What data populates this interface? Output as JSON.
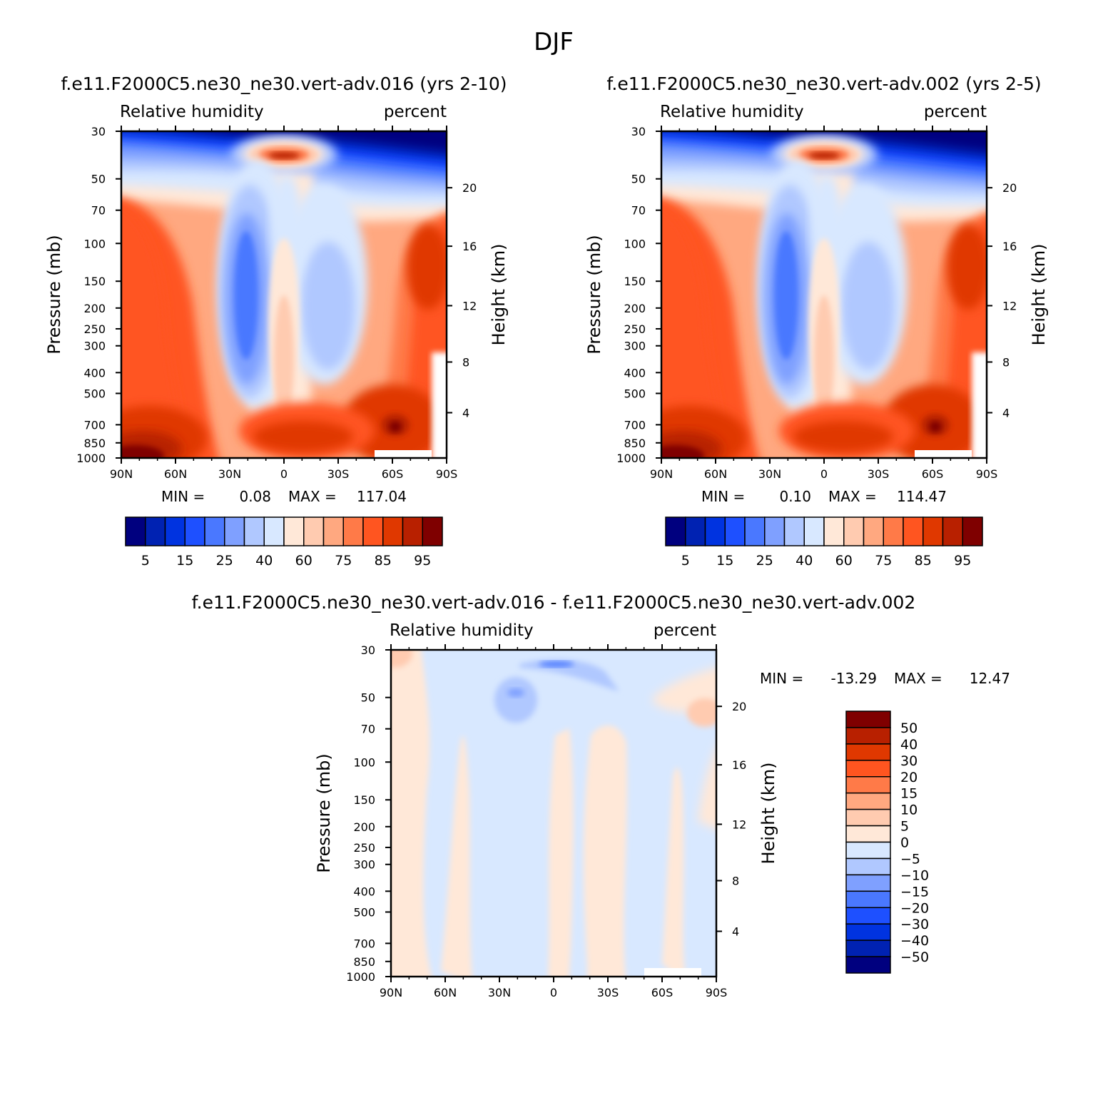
{
  "page_title": "DJF",
  "colors": {
    "rh_levels": [
      "#00007f",
      "#0022b2",
      "#0033e0",
      "#1e50ff",
      "#4a78ff",
      "#7fa0ff",
      "#b0c8ff",
      "#d8e8ff",
      "#ffe8d8",
      "#ffcbb0",
      "#ffa880",
      "#ff7a48",
      "#ff5520",
      "#e03800",
      "#b82000",
      "#7f0000"
    ],
    "diff_levels": [
      "#00007f",
      "#0022b2",
      "#0033e0",
      "#1e50ff",
      "#4a78ff",
      "#7fa0ff",
      "#b0c8ff",
      "#d8e8ff",
      "#ffe8d8",
      "#ffcbb0",
      "#ffa880",
      "#ff7a48",
      "#ff5520",
      "#e03800",
      "#b82000",
      "#7f0000"
    ]
  },
  "chart_data": [
    {
      "id": "panel-016",
      "type": "heatmap",
      "title": "f.e11.F2000C5.ne30_ne30.vert-adv.016 (yrs 2-10)",
      "variable": "Relative humidity",
      "units": "percent",
      "ylabel": "Pressure (mb)",
      "y2label": "Height (km)",
      "x_ticks": [
        "90N",
        "60N",
        "30N",
        "0",
        "30S",
        "60S",
        "90S"
      ],
      "x_range": [
        90,
        -90
      ],
      "pressure_ticks": [
        "30",
        "50",
        "70",
        "100",
        "150",
        "200",
        "250",
        "300",
        "400",
        "500",
        "700",
        "850",
        "1000"
      ],
      "height_ticks": [
        "20",
        "16",
        "12",
        "8",
        "4"
      ],
      "min_label": "MIN =",
      "min_value": "0.08",
      "max_label": "MAX =",
      "max_value": "117.04",
      "colorbar_labels": [
        "5",
        "15",
        "25",
        "40",
        "60",
        "75",
        "85",
        "95"
      ],
      "colorbar_orientation": "horizontal"
    },
    {
      "id": "panel-002",
      "type": "heatmap",
      "title": "f.e11.F2000C5.ne30_ne30.vert-adv.002 (yrs 2-5)",
      "variable": "Relative humidity",
      "units": "percent",
      "ylabel": "Pressure (mb)",
      "y2label": "Height (km)",
      "x_ticks": [
        "90N",
        "60N",
        "30N",
        "0",
        "30S",
        "60S",
        "90S"
      ],
      "x_range": [
        90,
        -90
      ],
      "pressure_ticks": [
        "30",
        "50",
        "70",
        "100",
        "150",
        "200",
        "250",
        "300",
        "400",
        "500",
        "700",
        "850",
        "1000"
      ],
      "height_ticks": [
        "20",
        "16",
        "12",
        "8",
        "4"
      ],
      "min_label": "MIN =",
      "min_value": "0.10",
      "max_label": "MAX =",
      "max_value": "114.47",
      "colorbar_labels": [
        "5",
        "15",
        "25",
        "40",
        "60",
        "75",
        "85",
        "95"
      ],
      "colorbar_orientation": "horizontal"
    },
    {
      "id": "panel-diff",
      "type": "heatmap",
      "title": "f.e11.F2000C5.ne30_ne30.vert-adv.016 - f.e11.F2000C5.ne30_ne30.vert-adv.002",
      "variable": "Relative humidity",
      "units": "percent",
      "ylabel": "Pressure (mb)",
      "y2label": "Height (km)",
      "x_ticks": [
        "90N",
        "60N",
        "30N",
        "0",
        "30S",
        "60S",
        "90S"
      ],
      "x_range": [
        90,
        -90
      ],
      "pressure_ticks": [
        "30",
        "50",
        "70",
        "100",
        "150",
        "200",
        "250",
        "300",
        "400",
        "500",
        "700",
        "850",
        "1000"
      ],
      "height_ticks": [
        "20",
        "16",
        "12",
        "8",
        "4"
      ],
      "min_label": "MIN =",
      "min_value": "-13.29",
      "max_label": "MAX =",
      "max_value": "12.47",
      "colorbar_labels": [
        "50",
        "40",
        "30",
        "20",
        "15",
        "10",
        "5",
        "0",
        "-5",
        "-10",
        "-15",
        "-20",
        "-30",
        "-40",
        "-50"
      ],
      "colorbar_orientation": "vertical"
    }
  ]
}
